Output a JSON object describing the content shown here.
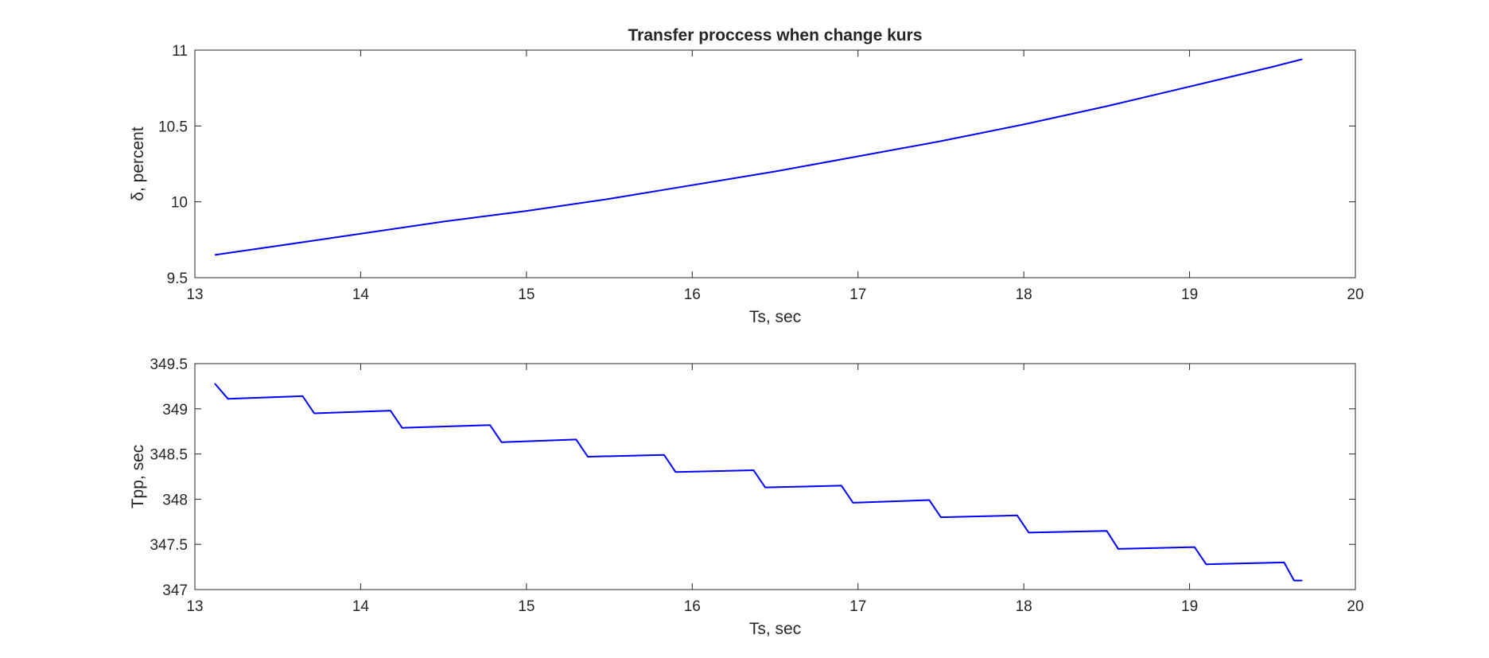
{
  "figure": {
    "title": "Transfer proccess when change kurs"
  },
  "chart_data": [
    {
      "type": "line",
      "title": "Transfer proccess when change kurs",
      "xlabel": "Ts, sec",
      "ylabel": "δ, percent",
      "xlim": [
        13,
        20
      ],
      "ylim": [
        9.5,
        11
      ],
      "xticks": [
        "13",
        "14",
        "15",
        "16",
        "17",
        "18",
        "19",
        "20"
      ],
      "yticks": [
        "9.5",
        "10",
        "10.5",
        "11"
      ],
      "grid": false,
      "series": [
        {
          "color": "#0000ff",
          "x": [
            13.12,
            13.5,
            14.0,
            14.5,
            15.0,
            15.5,
            16.0,
            16.5,
            17.0,
            17.5,
            18.0,
            18.5,
            19.0,
            19.5,
            19.68
          ],
          "y": [
            9.65,
            9.71,
            9.79,
            9.87,
            9.94,
            10.02,
            10.11,
            10.2,
            10.3,
            10.4,
            10.51,
            10.63,
            10.76,
            10.89,
            10.94
          ]
        }
      ]
    },
    {
      "type": "line",
      "title": "",
      "xlabel": "Ts, sec",
      "ylabel": "Tpp, sec",
      "xlim": [
        13,
        20
      ],
      "ylim": [
        347,
        349.5
      ],
      "xticks": [
        "13",
        "14",
        "15",
        "16",
        "17",
        "18",
        "19",
        "20"
      ],
      "yticks": [
        "347",
        "347.5",
        "348",
        "348.5",
        "349",
        "349.5"
      ],
      "grid": false,
      "series": [
        {
          "color": "#0000ff",
          "x": [
            13.12,
            13.2,
            13.65,
            13.72,
            14.18,
            14.25,
            14.78,
            14.85,
            15.3,
            15.37,
            15.83,
            15.9,
            16.37,
            16.44,
            16.9,
            16.97,
            17.43,
            17.5,
            17.96,
            18.03,
            18.5,
            18.57,
            19.03,
            19.1,
            19.57,
            19.63,
            19.68
          ],
          "y": [
            349.28,
            349.11,
            349.14,
            348.95,
            348.98,
            348.79,
            348.82,
            348.63,
            348.66,
            348.47,
            348.49,
            348.3,
            348.32,
            348.13,
            348.15,
            347.96,
            347.99,
            347.8,
            347.82,
            347.63,
            347.65,
            347.45,
            347.47,
            347.28,
            347.3,
            347.1,
            347.1
          ]
        }
      ]
    }
  ]
}
